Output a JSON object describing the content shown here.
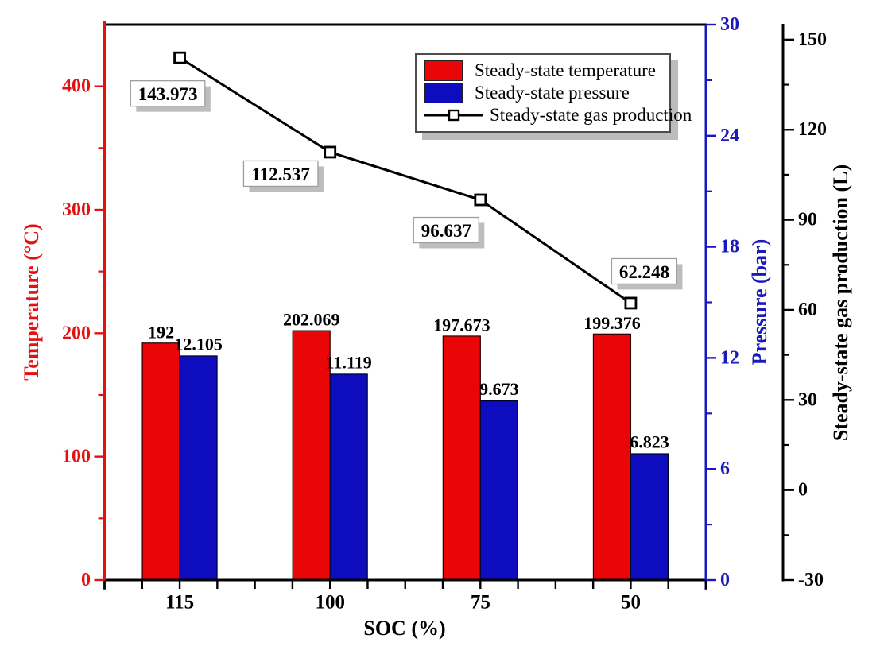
{
  "chart_data": {
    "type": "bar",
    "title": "",
    "xlabel": "SOC (%)",
    "categories": [
      "115",
      "100",
      "75",
      "50"
    ],
    "grid": false,
    "series": [
      {
        "name": "Steady-state temperature",
        "type": "bar",
        "axis": "temperature",
        "color": "#ea0606",
        "values": [
          192,
          202.069,
          197.673,
          199.376
        ],
        "labels": [
          "192",
          "202.069",
          "197.673",
          "199.376"
        ]
      },
      {
        "name": "Steady-state pressure",
        "type": "bar",
        "axis": "pressure",
        "color": "#0d0dbf",
        "values": [
          12.105,
          11.119,
          9.673,
          6.823
        ],
        "labels": [
          "12.105",
          "11.119",
          "9.673",
          "6.823"
        ]
      },
      {
        "name": "Steady-state gas production",
        "type": "line",
        "axis": "gas",
        "color": "#000000",
        "marker": "open-square",
        "values": [
          143.973,
          112.537,
          96.637,
          62.248
        ],
        "labels": [
          "143.973",
          "112.537",
          "96.637",
          "62.248"
        ]
      }
    ],
    "axes": {
      "temperature": {
        "label": "Temperature (°C)",
        "color": "#e31212",
        "side": "left",
        "min": 0,
        "max": 450,
        "major_ticks": [
          0,
          100,
          200,
          300,
          400
        ],
        "minor_step": 50
      },
      "pressure": {
        "label": "Pressure (bar)",
        "color": "#1a1abc",
        "side": "right",
        "min": 0,
        "max": 30,
        "major_ticks": [
          0,
          6,
          12,
          18,
          24,
          30
        ],
        "minor_step": 3
      },
      "gas": {
        "label": "Steady-state gas production (L)",
        "color": "#000000",
        "side": "right-offset",
        "min": -30,
        "max": 155,
        "major_ticks": [
          -30,
          0,
          30,
          60,
          90,
          120,
          150
        ],
        "minor_step": 15
      }
    },
    "legend": {
      "position": "top-center",
      "entries": [
        "Steady-state temperature",
        "Steady-state pressure",
        "Steady-state gas production"
      ]
    }
  }
}
